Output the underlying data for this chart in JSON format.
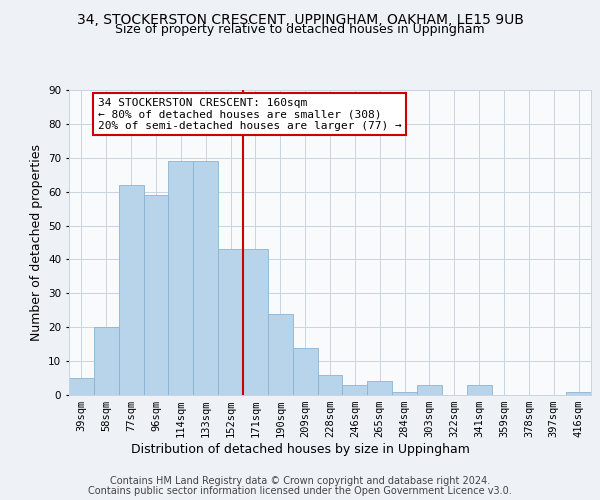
{
  "title": "34, STOCKERSTON CRESCENT, UPPINGHAM, OAKHAM, LE15 9UB",
  "subtitle": "Size of property relative to detached houses in Uppingham",
  "xlabel": "Distribution of detached houses by size in Uppingham",
  "ylabel": "Number of detached properties",
  "categories": [
    "39sqm",
    "58sqm",
    "77sqm",
    "96sqm",
    "114sqm",
    "133sqm",
    "152sqm",
    "171sqm",
    "190sqm",
    "209sqm",
    "228sqm",
    "246sqm",
    "265sqm",
    "284sqm",
    "303sqm",
    "322sqm",
    "341sqm",
    "359sqm",
    "378sqm",
    "397sqm",
    "416sqm"
  ],
  "values": [
    5,
    20,
    62,
    59,
    69,
    69,
    43,
    43,
    24,
    14,
    6,
    3,
    4,
    1,
    3,
    0,
    3,
    0,
    0,
    0,
    1
  ],
  "bar_color": "#b8d4ea",
  "bar_edge_color": "#8ab4d4",
  "vline_color": "#cc0000",
  "vline_position": 6.5,
  "annotation_text": "34 STOCKERSTON CRESCENT: 160sqm\n← 80% of detached houses are smaller (308)\n20% of semi-detached houses are larger (77) →",
  "annotation_box_color": "#ffffff",
  "annotation_box_edge": "#cc0000",
  "ylim": [
    0,
    90
  ],
  "yticks": [
    0,
    10,
    20,
    30,
    40,
    50,
    60,
    70,
    80,
    90
  ],
  "footer_line1": "Contains HM Land Registry data © Crown copyright and database right 2024.",
  "footer_line2": "Contains public sector information licensed under the Open Government Licence v3.0.",
  "background_color": "#eef2f7",
  "plot_bg_color": "#f8fafc",
  "grid_color": "#c8d4e0",
  "title_fontsize": 10,
  "subtitle_fontsize": 9,
  "axis_label_fontsize": 9,
  "tick_fontsize": 7.5,
  "annotation_fontsize": 8,
  "footer_fontsize": 7
}
